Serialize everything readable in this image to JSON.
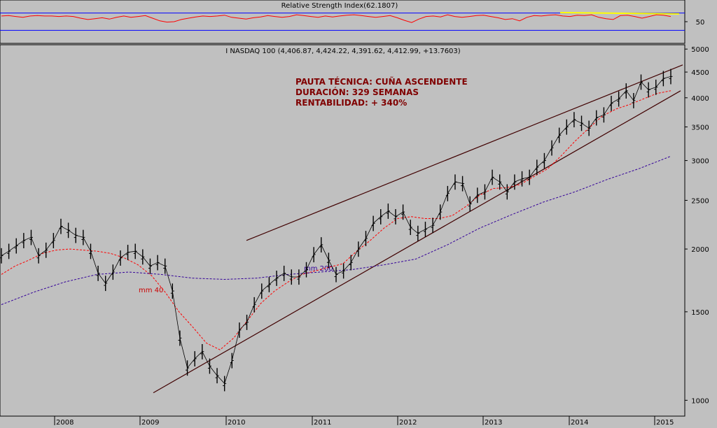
{
  "chart_data": [
    {
      "type": "line",
      "title": "Relative Strength Index(62.1807)",
      "y_ticks": [
        50
      ],
      "ylim": [
        0,
        100
      ],
      "reference_lines": [
        70,
        30
      ],
      "series": [
        {
          "values": [
            63,
            64,
            62,
            60,
            63,
            64,
            63,
            63,
            62,
            63,
            62,
            58,
            55,
            57,
            59,
            56,
            60,
            63,
            60,
            62,
            64,
            58,
            52,
            49,
            50,
            55,
            58,
            61,
            63,
            62,
            63,
            65,
            60,
            58,
            56,
            59,
            61,
            64,
            62,
            60,
            62,
            66,
            64,
            62,
            60,
            63,
            61,
            63,
            65,
            66,
            64,
            62,
            60,
            62,
            64,
            59,
            53,
            48,
            56,
            62,
            63,
            61,
            66,
            62,
            60,
            62,
            64,
            65,
            62,
            59,
            55,
            57,
            52,
            60,
            64,
            63,
            65,
            66,
            63,
            62,
            65,
            64,
            66,
            60,
            57,
            55,
            64,
            65,
            62,
            58,
            62,
            66,
            65,
            62
          ]
        }
      ],
      "trendline_start": 71,
      "trendline_end": 68,
      "colors": {
        "rsi": "#ff0000",
        "reference": "#0000ff",
        "trendline": "#ffff00"
      }
    },
    {
      "type": "line",
      "title": "I NASDAQ 100 (4,406.87, 4,424.22, 4,391.62, 4,412.99, +13.7603)",
      "scale": "log",
      "ylim": [
        930,
        5100
      ],
      "y_ticks": [
        1000,
        1500,
        2000,
        2500,
        3000,
        3500,
        4000,
        4500,
        5000
      ],
      "x_ticks": [
        "2008",
        "2009",
        "2010",
        "2011",
        "2012",
        "2013",
        "2014",
        "2015"
      ],
      "price": [
        1940,
        1980,
        2030,
        2080,
        2110,
        1940,
        1990,
        2080,
        2220,
        2180,
        2130,
        2110,
        1980,
        1790,
        1710,
        1800,
        1920,
        1970,
        1980,
        1930,
        1850,
        1880,
        1850,
        1650,
        1330,
        1160,
        1210,
        1250,
        1170,
        1120,
        1080,
        1200,
        1380,
        1430,
        1550,
        1650,
        1700,
        1750,
        1790,
        1760,
        1760,
        1820,
        1950,
        2040,
        1900,
        1780,
        1810,
        1880,
        2000,
        2100,
        2250,
        2320,
        2380,
        2320,
        2370,
        2210,
        2150,
        2190,
        2230,
        2370,
        2580,
        2720,
        2700,
        2460,
        2560,
        2600,
        2780,
        2720,
        2600,
        2720,
        2760,
        2780,
        2910,
        3000,
        3180,
        3370,
        3500,
        3620,
        3560,
        3480,
        3650,
        3700,
        3900,
        3980,
        4130,
        3950,
        4300,
        4150,
        4200,
        4370,
        4410
      ],
      "mm40": [
        1780,
        1850,
        1900,
        1960,
        1990,
        2000,
        1990,
        1980,
        1960,
        1920,
        1860,
        1770,
        1640,
        1500,
        1400,
        1300,
        1260,
        1330,
        1440,
        1560,
        1650,
        1720,
        1780,
        1810,
        1840,
        1870,
        1980,
        2080,
        2200,
        2300,
        2320,
        2300,
        2300,
        2330,
        2430,
        2560,
        2640,
        2650,
        2690,
        2790,
        2890,
        3070,
        3280,
        3480,
        3680,
        3800,
        3880,
        3980,
        4080,
        4130
      ],
      "mm200": [
        1550,
        1640,
        1720,
        1780,
        1800,
        1780,
        1750,
        1740,
        1750,
        1780,
        1800,
        1820,
        1860,
        1910,
        2040,
        2200,
        2340,
        2480,
        2600,
        2750,
        2890,
        3060
      ],
      "trendlines": {
        "upper_start": 2080,
        "upper_end": 4650,
        "lower_start": 1035,
        "lower_end": 4130
      },
      "series_labels": [
        "mm 40",
        "mm 200"
      ],
      "annotation": [
        "PAUTA TÉCNICA: CUÑA ASCENDENTE",
        "DURACIÓN: 329 SEMANAS",
        "RENTABILIDAD: + 340%"
      ],
      "colors": {
        "price": "#000000",
        "mm40": "#ff0000",
        "mm200": "#330099",
        "trendline": "#400000",
        "annotation": "#800000"
      }
    }
  ]
}
